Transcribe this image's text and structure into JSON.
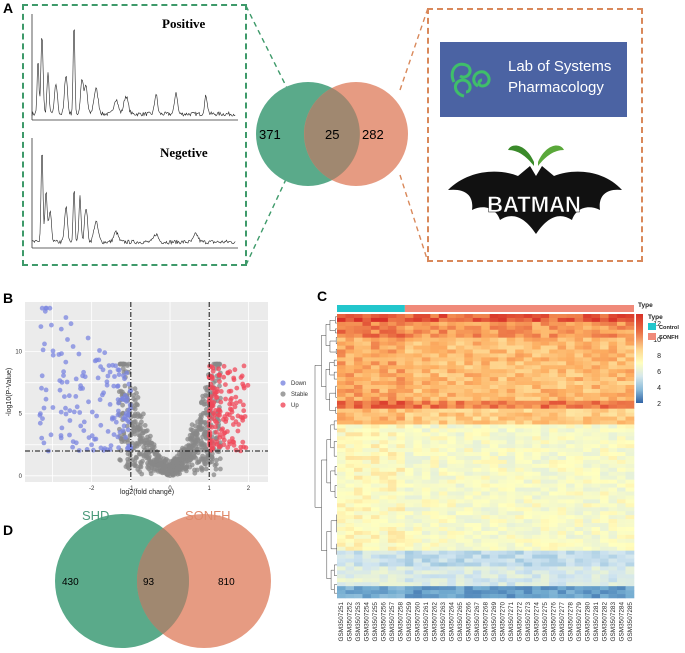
{
  "panels": {
    "a": "A",
    "b": "B",
    "c": "C",
    "d": "D"
  },
  "panel_a": {
    "chrom_positive": "Positive",
    "chrom_negative": "Negetive",
    "venn": {
      "left": "371",
      "overlap": "25",
      "right": "282"
    },
    "lsp_line1": "Lab of Systems",
    "lsp_line2": "Pharmacology",
    "batman": "BATMAN",
    "colors": {
      "left": "#5aaa8a",
      "right": "#e28a6c",
      "green_dash": "#3e9a6a",
      "orange_dash": "#d9885a",
      "lsp_bg": "#4b63a3"
    }
  },
  "chart_data": [
    {
      "type": "scatter",
      "title": "",
      "xlabel": "log2(fold change)",
      "ylabel": "-log10(P-Value)",
      "xticks": [
        "-2",
        "-1",
        "0",
        "1",
        "2"
      ],
      "yticks": [
        "0",
        "5",
        "10"
      ],
      "xlim": [
        -3.7,
        2.5
      ],
      "ylim": [
        -0.5,
        14
      ],
      "thresholds": {
        "x": [
          -1,
          1
        ],
        "y": 2
      },
      "legend": [
        {
          "name": "Down",
          "color": "#7b86e0"
        },
        {
          "name": "Stable",
          "color": "#888888"
        },
        {
          "name": "Up",
          "color": "#f0485a"
        }
      ],
      "legend_position": "right"
    },
    {
      "type": "heatmap",
      "legend_title": "Type",
      "groups": [
        {
          "name": "Control",
          "color": "#22c6cc",
          "count": 8
        },
        {
          "name": "SONFH",
          "color": "#f08a7a",
          "count": 27
        }
      ],
      "scale_ticks": [
        "12",
        "10",
        "8",
        "6",
        "4",
        "2"
      ],
      "samples": [
        "GSM3507251",
        "GSM3507252",
        "GSM3507253",
        "GSM3507254",
        "GSM3507255",
        "GSM3507256",
        "GSM3507257",
        "GSM3507258",
        "GSM3507259",
        "GSM3507260",
        "GSM3507261",
        "GSM3507262",
        "GSM3507263",
        "GSM3507264",
        "GSM3507265",
        "GSM3507266",
        "GSM3507267",
        "GSM3507268",
        "GSM3507269",
        "GSM3507270",
        "GSM3507271",
        "GSM3507272",
        "GSM3507273",
        "GSM3507274",
        "GSM3507275",
        "GSM3507276",
        "GSM3507277",
        "GSM3507278",
        "GSM3507279",
        "GSM3507280",
        "GSM3507281",
        "GSM3507282",
        "GSM3507283",
        "GSM3507284",
        "GSM3507285"
      ]
    },
    {
      "type": "venn",
      "sets": [
        {
          "name": "SHD",
          "only": 430
        },
        {
          "name": "SONFH",
          "only": 810
        }
      ],
      "overlap": 93,
      "colors": {
        "left": "#5aaa8a",
        "right": "#e28a6c",
        "left_label": "#4a9a7a",
        "right_label": "#e08a6a"
      }
    }
  ],
  "panel_d_text": {
    "left_name": "SHD",
    "right_name": "SONFH",
    "left": "430",
    "overlap": "93",
    "right": "810"
  }
}
